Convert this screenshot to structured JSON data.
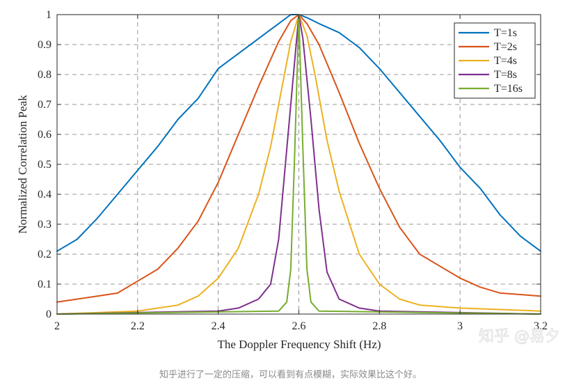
{
  "chart_data": {
    "type": "line",
    "title": "",
    "xlabel": "The Doppler Frequency Shift  (Hz)",
    "ylabel": "Normalized Correlation Peak",
    "xlim": [
      2,
      3.2
    ],
    "ylim": [
      0,
      1
    ],
    "xticks": [
      "2",
      "2.2",
      "2.4",
      "2.6",
      "2.8",
      "3",
      "3.2"
    ],
    "yticks": [
      "0",
      "0.1",
      "0.2",
      "0.3",
      "0.4",
      "0.5",
      "0.6",
      "0.7",
      "0.8",
      "0.9",
      "1"
    ],
    "grid": true,
    "grid_style": "dashed",
    "legend_position": "top-right",
    "series": [
      {
        "name": "T=1s",
        "color": "#0072BD",
        "x": [
          2.0,
          2.05,
          2.1,
          2.15,
          2.2,
          2.25,
          2.3,
          2.35,
          2.4,
          2.45,
          2.5,
          2.55,
          2.58,
          2.6,
          2.62,
          2.65,
          2.7,
          2.75,
          2.8,
          2.85,
          2.9,
          2.95,
          3.0,
          3.05,
          3.1,
          3.15,
          3.2
        ],
        "y": [
          0.21,
          0.25,
          0.32,
          0.4,
          0.48,
          0.56,
          0.65,
          0.72,
          0.82,
          0.87,
          0.92,
          0.97,
          1.0,
          1.0,
          0.99,
          0.97,
          0.94,
          0.89,
          0.82,
          0.74,
          0.66,
          0.58,
          0.49,
          0.42,
          0.33,
          0.26,
          0.21
        ]
      },
      {
        "name": "T=2s",
        "color": "#D95319",
        "x": [
          2.0,
          2.1,
          2.15,
          2.2,
          2.25,
          2.3,
          2.35,
          2.4,
          2.45,
          2.5,
          2.55,
          2.58,
          2.6,
          2.62,
          2.65,
          2.7,
          2.75,
          2.8,
          2.85,
          2.9,
          2.95,
          3.0,
          3.05,
          3.1,
          3.2
        ],
        "y": [
          0.04,
          0.06,
          0.07,
          0.11,
          0.15,
          0.22,
          0.31,
          0.44,
          0.6,
          0.76,
          0.91,
          0.98,
          1.0,
          0.97,
          0.9,
          0.74,
          0.57,
          0.42,
          0.29,
          0.2,
          0.16,
          0.12,
          0.09,
          0.07,
          0.06
        ]
      },
      {
        "name": "T=4s",
        "color": "#EDB120",
        "x": [
          2.0,
          2.2,
          2.3,
          2.35,
          2.4,
          2.45,
          2.5,
          2.53,
          2.56,
          2.58,
          2.6,
          2.62,
          2.64,
          2.67,
          2.7,
          2.75,
          2.8,
          2.85,
          2.9,
          3.0,
          3.2
        ],
        "y": [
          0.0,
          0.01,
          0.03,
          0.06,
          0.12,
          0.22,
          0.4,
          0.56,
          0.77,
          0.91,
          1.0,
          0.93,
          0.8,
          0.58,
          0.41,
          0.2,
          0.1,
          0.05,
          0.03,
          0.02,
          0.01
        ]
      },
      {
        "name": "T=8s",
        "color": "#7E2F8E",
        "x": [
          2.0,
          2.4,
          2.45,
          2.5,
          2.53,
          2.55,
          2.57,
          2.59,
          2.6,
          2.61,
          2.63,
          2.65,
          2.67,
          2.7,
          2.75,
          2.8,
          3.2
        ],
        "y": [
          0.0,
          0.01,
          0.02,
          0.05,
          0.1,
          0.25,
          0.55,
          0.85,
          1.0,
          0.92,
          0.65,
          0.35,
          0.14,
          0.05,
          0.02,
          0.01,
          0.0
        ]
      },
      {
        "name": "T=16s",
        "color": "#77AC30",
        "x": [
          2.0,
          2.55,
          2.57,
          2.58,
          2.59,
          2.6,
          2.61,
          2.62,
          2.63,
          2.65,
          3.2
        ],
        "y": [
          0.0,
          0.01,
          0.04,
          0.15,
          0.55,
          1.0,
          0.55,
          0.15,
          0.04,
          0.01,
          0.0
        ]
      }
    ]
  },
  "watermark": "知乎 @易夕",
  "caption": "知乎进行了一定的压缩，可以看到有点模糊，实际效果比这个好。"
}
